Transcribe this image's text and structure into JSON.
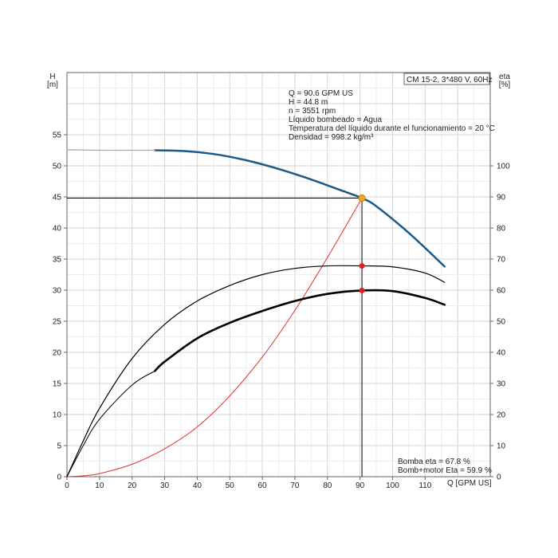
{
  "chart_data": {
    "type": "line",
    "title": "CM 15-2, 3*480 V, 60Hz",
    "xlabel": "Q [GPM US]",
    "y_left_label_1": "H",
    "y_left_label_2": "[m]",
    "y_right_label_1": "eta",
    "y_right_label_2": "[%]",
    "xlim": [
      0,
      130
    ],
    "ylim_left": [
      0,
      65
    ],
    "ylim_right": [
      0,
      130
    ],
    "x_ticks": [
      "0",
      "10",
      "20",
      "30",
      "40",
      "50",
      "60",
      "70",
      "80",
      "90",
      "100",
      "110"
    ],
    "y_left_ticks": [
      "0",
      "5",
      "10",
      "15",
      "20",
      "25",
      "30",
      "35",
      "40",
      "45",
      "50",
      "55"
    ],
    "y_right_ticks": [
      "0",
      "10",
      "20",
      "30",
      "40",
      "50",
      "60",
      "70",
      "80",
      "90",
      "100"
    ],
    "grid": true,
    "info_lines": [
      "Q = 90.6 GPM US",
      "H = 44.8 m",
      "n = 3551 rpm",
      "Líquido bombeado = Agua",
      "Temperatura del líquido durante el funcionamiento = 20 °C",
      "Densidad = 998.2 kg/m³"
    ],
    "eff_lines": [
      "Bomba eta = 67.8 %",
      "Bomb+motor Eta = 59.9 %"
    ],
    "duty_point": {
      "x": 90.6,
      "head": 44.8,
      "eta_pump": 67.8,
      "eta_total": 59.9
    },
    "series": [
      {
        "axis": "left",
        "color": "#1a5a8a",
        "width": 2.5,
        "x": [
          27,
          35,
          45,
          55,
          65,
          75,
          85,
          90.6,
          95,
          105,
          116
        ],
        "y": [
          52.5,
          52.4,
          51.9,
          50.9,
          49.5,
          47.8,
          45.9,
          44.8,
          43.5,
          39.2,
          33.8
        ]
      },
      {
        "axis": "left",
        "color": "#aaaaaa",
        "width": 1.2,
        "x": [
          0,
          10,
          20,
          27
        ],
        "y": [
          52.6,
          52.5,
          52.5,
          52.5
        ]
      },
      {
        "axis": "right",
        "color": "#e03030",
        "width": 1,
        "x": [
          0,
          5,
          10,
          20,
          30,
          40,
          50,
          60,
          70,
          80,
          90.6
        ],
        "y": [
          0,
          0.3,
          1,
          4,
          9,
          16,
          26,
          38.5,
          53.5,
          70.5,
          89.6
        ]
      },
      {
        "axis": "right",
        "color": "#000000",
        "width": 1.2,
        "x": [
          0,
          5,
          10,
          20,
          30,
          40,
          50,
          60,
          70,
          80,
          90.6,
          100,
          110,
          116
        ],
        "y": [
          0,
          11.5,
          22,
          38,
          49,
          56.5,
          61.5,
          65,
          67,
          67.8,
          67.8,
          67.5,
          65.5,
          62.5
        ]
      },
      {
        "axis": "right",
        "color": "#000000",
        "width": 1,
        "x": [
          0,
          5,
          10,
          20,
          27
        ],
        "y": [
          0,
          10,
          18.5,
          29.5,
          34
        ]
      },
      {
        "axis": "right",
        "color": "#000000",
        "width": 2.6,
        "x": [
          27,
          30,
          40,
          50,
          60,
          70,
          80,
          90.6,
          100,
          110,
          116
        ],
        "y": [
          34,
          37,
          44.5,
          49.5,
          53.3,
          56.5,
          58.8,
          59.9,
          59.7,
          57.5,
          55.3
        ]
      }
    ]
  }
}
